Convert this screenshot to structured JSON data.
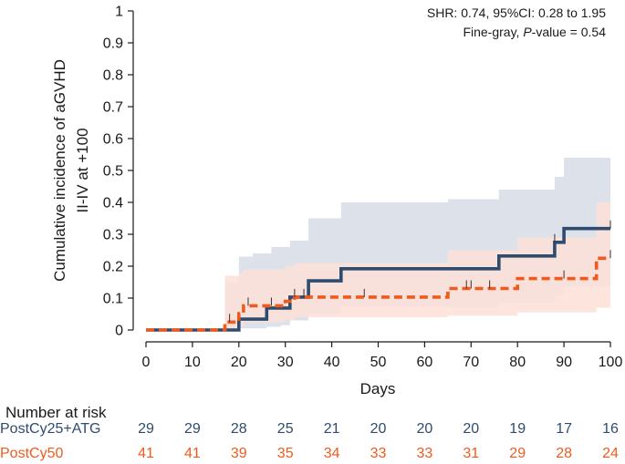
{
  "chart_data": {
    "type": "line",
    "subtype": "cumulative-incidence-step",
    "ylabel_line1": "Cumulative incidence of aGVHD",
    "ylabel_line2": "II-IV at +100",
    "xlabel": "Days",
    "xlim": [
      0,
      100
    ],
    "ylim": [
      0,
      1
    ],
    "x_ticks": [
      0,
      10,
      20,
      30,
      40,
      50,
      60,
      70,
      80,
      90,
      100
    ],
    "y_ticks": [
      0,
      0.1,
      0.2,
      0.3,
      0.4,
      0.5,
      0.6,
      0.7,
      0.8,
      0.9,
      1
    ],
    "y_tick_labels": [
      "0",
      "0.1",
      "0.2",
      "0.3",
      "0.4",
      "0.5",
      "0.6",
      "0.7",
      "0.8",
      "0.9",
      "1"
    ],
    "annotation": {
      "line1": "SHR: 0.74, 95%CI: 0.28 to 1.95",
      "line2_prefix": "Fine-gray, ",
      "line2_italic": "P",
      "line2_suffix": "-value = 0.54"
    },
    "series": [
      {
        "name": "PostCy25+ATG",
        "color": "#2f4b6e",
        "ci_color": "#dde2ea",
        "style": "solid",
        "steps": [
          [
            0,
            0
          ],
          [
            20,
            0.034
          ],
          [
            26,
            0.069
          ],
          [
            31,
            0.103
          ],
          [
            35,
            0.154
          ],
          [
            42,
            0.192
          ],
          [
            76,
            0.232
          ],
          [
            88,
            0.275
          ],
          [
            90,
            0.318
          ],
          [
            100,
            0.318
          ]
        ],
        "ci_lower": [
          [
            0,
            0
          ],
          [
            20,
            0.005
          ],
          [
            26,
            0.01
          ],
          [
            29,
            0.015
          ],
          [
            31,
            0.03
          ],
          [
            35,
            0.05
          ],
          [
            42,
            0.075
          ],
          [
            65,
            0.07
          ],
          [
            76,
            0.085
          ],
          [
            88,
            0.11
          ],
          [
            90,
            0.135
          ],
          [
            100,
            0.135
          ]
        ],
        "ci_upper": [
          [
            0,
            0
          ],
          [
            17,
            0.15
          ],
          [
            20,
            0.23
          ],
          [
            23,
            0.24
          ],
          [
            27,
            0.26
          ],
          [
            31,
            0.28
          ],
          [
            35,
            0.35
          ],
          [
            42,
            0.4
          ],
          [
            65,
            0.41
          ],
          [
            76,
            0.44
          ],
          [
            88,
            0.48
          ],
          [
            90,
            0.54
          ],
          [
            100,
            0.54
          ]
        ],
        "censor_x": [
          32,
          88,
          100
        ]
      },
      {
        "name": "PostCy50",
        "color": "#f05a1e",
        "ci_color": "#fde1d8",
        "style": "dashed",
        "steps": [
          [
            0,
            0
          ],
          [
            17,
            0.025
          ],
          [
            20,
            0.051
          ],
          [
            21,
            0.076
          ],
          [
            30,
            0.09
          ],
          [
            32,
            0.103
          ],
          [
            65,
            0.13
          ],
          [
            80,
            0.161
          ],
          [
            97,
            0.225
          ],
          [
            100,
            0.225
          ]
        ],
        "ci_lower": [
          [
            0,
            0
          ],
          [
            17,
            0.005
          ],
          [
            20,
            0.01
          ],
          [
            21,
            0.025
          ],
          [
            30,
            0.03
          ],
          [
            32,
            0.04
          ],
          [
            65,
            0.045
          ],
          [
            80,
            0.055
          ],
          [
            97,
            0.07
          ],
          [
            100,
            0.07
          ]
        ],
        "ci_upper": [
          [
            0,
            0
          ],
          [
            17,
            0.17
          ],
          [
            20,
            0.18
          ],
          [
            21,
            0.19
          ],
          [
            30,
            0.2
          ],
          [
            32,
            0.21
          ],
          [
            65,
            0.25
          ],
          [
            80,
            0.29
          ],
          [
            97,
            0.4
          ],
          [
            100,
            0.4
          ]
        ],
        "censor_x": [
          18,
          22,
          27,
          34,
          47,
          69,
          70,
          74,
          90,
          100
        ]
      }
    ],
    "risk_table": {
      "title": "Number at risk",
      "rows": [
        {
          "name": "PostCy25+ATG",
          "color": "#2f4b6e",
          "values": [
            "29",
            "29",
            "28",
            "25",
            "21",
            "20",
            "20",
            "20",
            "19",
            "17",
            "16"
          ]
        },
        {
          "name": "PostCy50",
          "color": "#f05a1e",
          "values": [
            "41",
            "41",
            "39",
            "35",
            "34",
            "33",
            "33",
            "31",
            "29",
            "28",
            "24"
          ]
        }
      ]
    }
  }
}
